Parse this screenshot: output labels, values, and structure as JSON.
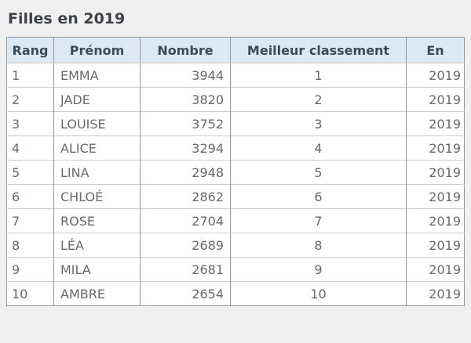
{
  "page": {
    "title": "Filles en 2019"
  },
  "table": {
    "headers": [
      "Rang",
      "Prénom",
      "Nombre",
      "Meilleur classement",
      "En"
    ],
    "rows": [
      {
        "rang": "1",
        "prenom": "EMMA",
        "nombre": "3944",
        "meilleur": "1",
        "en": "2019"
      },
      {
        "rang": "2",
        "prenom": "JADE",
        "nombre": "3820",
        "meilleur": "2",
        "en": "2019"
      },
      {
        "rang": "3",
        "prenom": "LOUISE",
        "nombre": "3752",
        "meilleur": "3",
        "en": "2019"
      },
      {
        "rang": "4",
        "prenom": "ALICE",
        "nombre": "3294",
        "meilleur": "4",
        "en": "2019"
      },
      {
        "rang": "5",
        "prenom": "LINA",
        "nombre": "2948",
        "meilleur": "5",
        "en": "2019"
      },
      {
        "rang": "6",
        "prenom": "CHLOÉ",
        "nombre": "2862",
        "meilleur": "6",
        "en": "2019"
      },
      {
        "rang": "7",
        "prenom": "ROSE",
        "nombre": "2704",
        "meilleur": "7",
        "en": "2019"
      },
      {
        "rang": "8",
        "prenom": "LÉA",
        "nombre": "2689",
        "meilleur": "8",
        "en": "2019"
      },
      {
        "rang": "9",
        "prenom": "MILA",
        "nombre": "2681",
        "meilleur": "9",
        "en": "2019"
      },
      {
        "rang": "10",
        "prenom": "AMBRE",
        "nombre": "2654",
        "meilleur": "10",
        "en": "2019"
      }
    ]
  },
  "colors": {
    "page_background": "#f0f0f1",
    "header_background": "#dbe8f5",
    "header_text": "#3c4b5a",
    "body_text": "#67696c",
    "vertical_border": "#979797",
    "horizontal_border": "#cccccc",
    "title_text": "#3d4348"
  }
}
